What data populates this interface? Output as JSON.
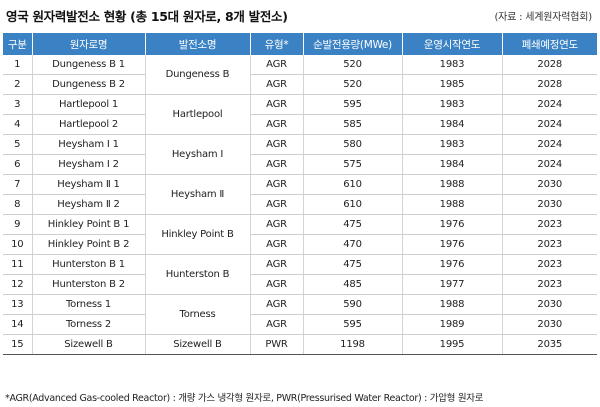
{
  "title": "영국 원자력발전소 현황 (총 15대 원자로, 8개 발전소)",
  "source": "(자료 : 세계원자력협회)",
  "headers": [
    "구분",
    "원자로명",
    "발전소명",
    "유형*",
    "순발전용량(MWe)",
    "운영시작연도",
    "폐쇄예정연도"
  ],
  "rows": [
    {
      "no": "1",
      "reactor": "Dungeness B 1",
      "type": "AGR",
      "capacity": "520",
      "start": "1983",
      "close": "2028"
    },
    {
      "no": "2",
      "reactor": "Dungeness B 2",
      "type": "AGR",
      "capacity": "520",
      "start": "1985",
      "close": "2028"
    },
    {
      "no": "3",
      "reactor": "Hartlepool 1",
      "type": "AGR",
      "capacity": "595",
      "start": "1983",
      "close": "2024"
    },
    {
      "no": "4",
      "reactor": "Hartlepool 2",
      "type": "AGR",
      "capacity": "585",
      "start": "1984",
      "close": "2024"
    },
    {
      "no": "5",
      "reactor": "Heysham I 1",
      "type": "AGR",
      "capacity": "580",
      "start": "1983",
      "close": "2024"
    },
    {
      "no": "6",
      "reactor": "Heysham I 2",
      "type": "AGR",
      "capacity": "575",
      "start": "1984",
      "close": "2024"
    },
    {
      "no": "7",
      "reactor": "Heysham Ⅱ 1",
      "type": "AGR",
      "capacity": "610",
      "start": "1988",
      "close": "2030"
    },
    {
      "no": "8",
      "reactor": "Heysham Ⅱ 2",
      "type": "AGR",
      "capacity": "610",
      "start": "1988",
      "close": "2030"
    },
    {
      "no": "9",
      "reactor": "Hinkley Point B 1",
      "type": "AGR",
      "capacity": "475",
      "start": "1976",
      "close": "2023"
    },
    {
      "no": "10",
      "reactor": "Hinkley Point B 2",
      "type": "AGR",
      "capacity": "470",
      "start": "1976",
      "close": "2023"
    },
    {
      "no": "11",
      "reactor": "Hunterston B 1",
      "type": "AGR",
      "capacity": "475",
      "start": "1976",
      "close": "2023"
    },
    {
      "no": "12",
      "reactor": "Hunterston B 2",
      "type": "AGR",
      "capacity": "485",
      "start": "1977",
      "close": "2023"
    },
    {
      "no": "13",
      "reactor": "Torness 1",
      "type": "AGR",
      "capacity": "590",
      "start": "1988",
      "close": "2030"
    },
    {
      "no": "14",
      "reactor": "Torness 2",
      "type": "AGR",
      "capacity": "595",
      "start": "1989",
      "close": "2030"
    },
    {
      "no": "15",
      "reactor": "Sizewell B",
      "type": "PWR",
      "capacity": "1198",
      "start": "1995",
      "close": "2035"
    }
  ],
  "plants": [
    "Dungeness B",
    "Hartlepool",
    "Heysham I",
    "Heysham Ⅱ",
    "Hinkley Point B",
    "Hunterston B",
    "Torness",
    "Sizewell B"
  ],
  "note": "*AGR(Advanced Gas-cooled Reactor) : 개량 가스 냉각형 원자로, PWR(Pressurised Water Reactor) : 가압형 원자로"
}
